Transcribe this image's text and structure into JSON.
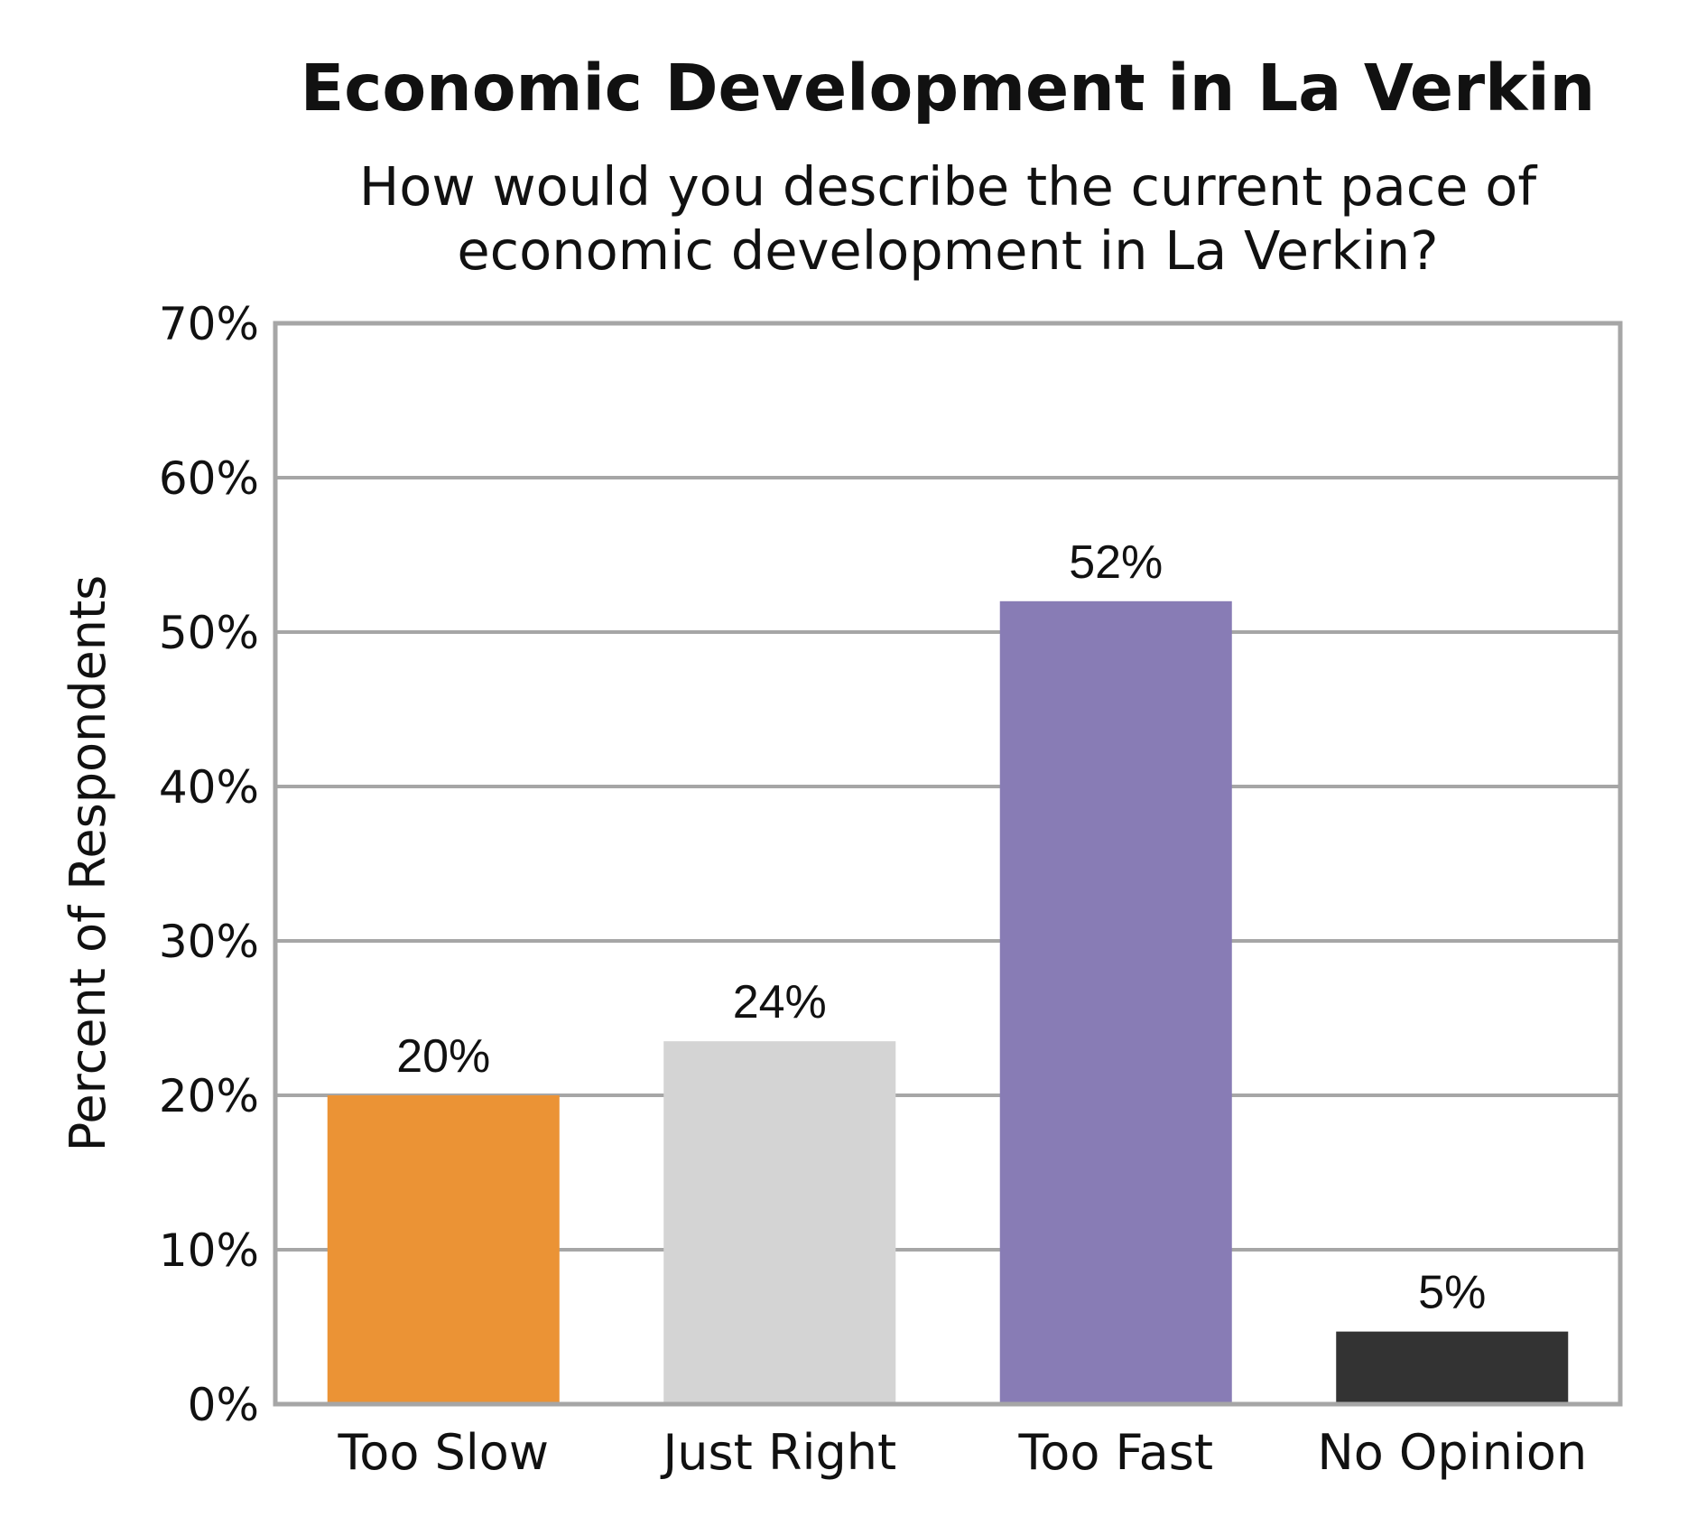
{
  "chart_data": {
    "type": "bar",
    "title": "Economic Development in La Verkin",
    "subtitle_lines": [
      "How would you describe the current pace of",
      "economic development in La Verkin?"
    ],
    "xlabel": "",
    "ylabel": "Percent of Respondents",
    "ylim": [
      0,
      70
    ],
    "yticks": [
      0,
      10,
      20,
      30,
      40,
      50,
      60,
      70
    ],
    "ytick_labels": [
      "0%",
      "10%",
      "20%",
      "30%",
      "40%",
      "50%",
      "60%",
      "70%"
    ],
    "grid": true,
    "legend": "none",
    "categories": [
      "Too Slow",
      "Just Right",
      "Too Fast",
      "No Opinion"
    ],
    "values": [
      20,
      23.5,
      52,
      4.7
    ],
    "data_labels": [
      "20%",
      "24%",
      "52%",
      "5%"
    ],
    "colors": [
      "#EB9335",
      "#D4D4D4",
      "#887CB5",
      "#333333"
    ]
  }
}
